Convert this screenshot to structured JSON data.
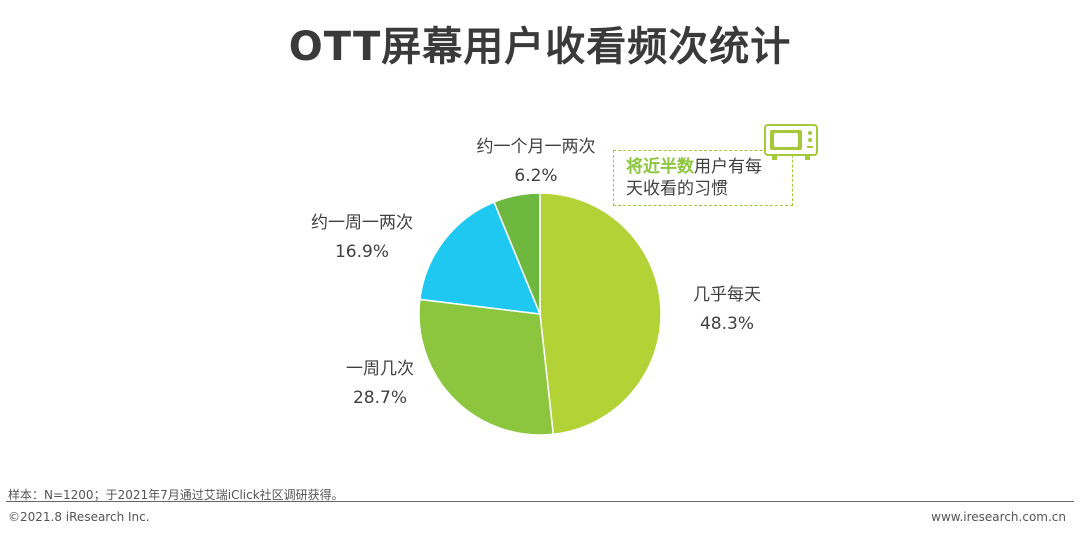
{
  "title": "OTT屏幕用户收看频次统计",
  "chart_data": {
    "type": "pie",
    "title": "OTT屏幕用户收看频次统计",
    "slices": [
      {
        "label": "几乎每天",
        "value": 48.3,
        "display": "48.3%",
        "color": "#b2d235"
      },
      {
        "label": "一周几次",
        "value": 28.7,
        "display": "28.7%",
        "color": "#8cc63f"
      },
      {
        "label": "约一周一两次",
        "value": 16.9,
        "display": "16.9%",
        "color": "#1ec8f0"
      },
      {
        "label": "约一个月一两次",
        "value": 6.2,
        "display": "6.2%",
        "color": "#6fb83f"
      }
    ]
  },
  "callout": {
    "highlight": "将近半数",
    "text_line1": "用户有每",
    "text_line2": "天收看的习惯"
  },
  "footer": {
    "note": "样本：N=1200；于2021年7月通过艾瑞iClick社区调研获得。",
    "copyright": "©2021.8 iResearch Inc.",
    "website": "www.iresearch.com.cn"
  }
}
